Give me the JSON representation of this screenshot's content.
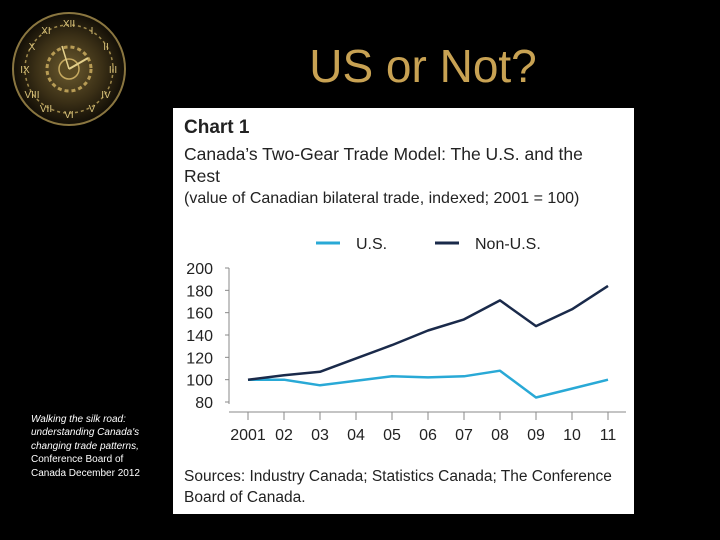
{
  "slide": {
    "title": "US or Not?",
    "citation_italic": "Walking the silk road: understanding Canada's changing trade patterns,",
    "citation_regular": "Conference Board of Canada December 2012"
  },
  "chart_data": {
    "type": "line",
    "chart_number": "Chart 1",
    "title": "Canada’s Two-Gear Trade Model: The U.S. and the Rest",
    "subtitle": "(value of Canadian bilateral trade, indexed; 2001 = 100)",
    "source": "Sources: Industry Canada; Statistics Canada; The Conference Board of Canada.",
    "categories": [
      "2001",
      "02",
      "03",
      "04",
      "05",
      "06",
      "07",
      "08",
      "09",
      "10",
      "11"
    ],
    "yticks": [
      "200",
      "180",
      "160",
      "140",
      "120",
      "100",
      "80"
    ],
    "ylim": [
      80,
      200
    ],
    "grid": false,
    "legend_position": "top",
    "series": [
      {
        "name": "U.S.",
        "color": "#29a9d6",
        "values": [
          100,
          100,
          95,
          99,
          103,
          102,
          103,
          108,
          84,
          92,
          100
        ]
      },
      {
        "name": "Non-U.S.",
        "color": "#1a2a4a",
        "values": [
          100,
          104,
          107,
          119,
          131,
          144,
          154,
          171,
          148,
          163,
          184
        ]
      }
    ]
  }
}
